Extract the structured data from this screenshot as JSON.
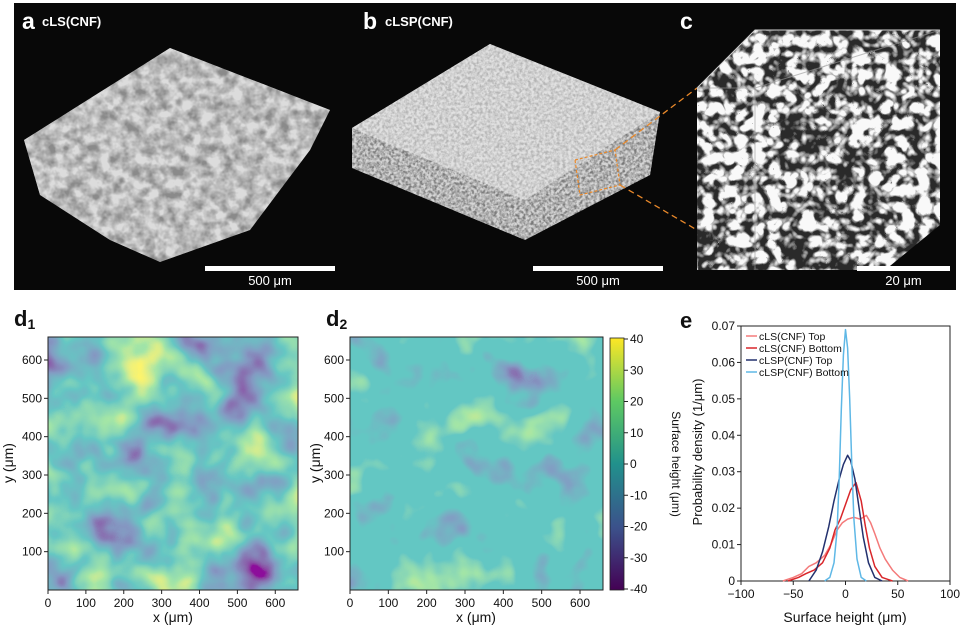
{
  "panels": {
    "a": {
      "letter": "a",
      "label": "cLS(CNF)",
      "scalebar": "500 μm"
    },
    "b": {
      "letter": "b",
      "label": "cLSP(CNF)",
      "scalebar": "500 μm"
    },
    "c": {
      "letter": "c",
      "scalebar": "20 μm"
    },
    "d1": {
      "letter": "d",
      "sub": "1"
    },
    "d2": {
      "letter": "d",
      "sub": "2"
    },
    "e": {
      "letter": "e"
    }
  },
  "heatmaps": {
    "x_label": "x (μm)",
    "y_label": "y (μm)",
    "x_ticks": [
      "0",
      "100",
      "200",
      "300",
      "400",
      "500",
      "600"
    ],
    "y_ticks": [
      "100",
      "200",
      "300",
      "400",
      "500",
      "600"
    ],
    "colorbar_label": "Surface height (μm)",
    "colorbar_ticks": [
      "40",
      "30",
      "20",
      "10",
      "0",
      "-10",
      "-20",
      "-30",
      "-40"
    ]
  },
  "chart_data": {
    "type": "line",
    "xlabel": "Surface height (μm)",
    "ylabel": "Probability density (1/μm)",
    "xlim": [
      -100,
      100
    ],
    "ylim": [
      0,
      0.07
    ],
    "x_ticks": [
      "−100",
      "−50",
      "0",
      "50",
      "100"
    ],
    "y_ticks": [
      "0",
      "0.01",
      "0.02",
      "0.03",
      "0.04",
      "0.05",
      "0.06",
      "0.07"
    ],
    "legend_position": "top-left",
    "series": [
      {
        "name": "cLS(CNF) Top",
        "color": "#f47a7a",
        "points": [
          [
            -60,
            0
          ],
          [
            -50,
            0.001
          ],
          [
            -42,
            0.002
          ],
          [
            -35,
            0.004
          ],
          [
            -28,
            0.005
          ],
          [
            -20,
            0.007
          ],
          [
            -14,
            0.01
          ],
          [
            -8,
            0.014
          ],
          [
            -3,
            0.016
          ],
          [
            2,
            0.017
          ],
          [
            8,
            0.0175
          ],
          [
            14,
            0.017
          ],
          [
            20,
            0.018
          ],
          [
            24,
            0.016
          ],
          [
            28,
            0.013
          ],
          [
            33,
            0.009
          ],
          [
            38,
            0.006
          ],
          [
            45,
            0.003
          ],
          [
            52,
            0.001
          ],
          [
            60,
            0
          ]
        ]
      },
      {
        "name": "cLS(CNF) Bottom",
        "color": "#d9262a",
        "points": [
          [
            -55,
            0
          ],
          [
            -45,
            0.001
          ],
          [
            -38,
            0.002
          ],
          [
            -30,
            0.003
          ],
          [
            -22,
            0.005
          ],
          [
            -15,
            0.009
          ],
          [
            -10,
            0.014
          ],
          [
            -5,
            0.017
          ],
          [
            0,
            0.021
          ],
          [
            5,
            0.025
          ],
          [
            10,
            0.027
          ],
          [
            15,
            0.022
          ],
          [
            19,
            0.015
          ],
          [
            23,
            0.009
          ],
          [
            28,
            0.004
          ],
          [
            35,
            0.001
          ],
          [
            45,
            0
          ]
        ]
      },
      {
        "name": "cLSP(CNF) Top",
        "color": "#23316e",
        "points": [
          [
            -35,
            0
          ],
          [
            -28,
            0.003
          ],
          [
            -22,
            0.008
          ],
          [
            -16,
            0.015
          ],
          [
            -11,
            0.022
          ],
          [
            -6,
            0.028
          ],
          [
            -2,
            0.032
          ],
          [
            2,
            0.0345
          ],
          [
            5,
            0.033
          ],
          [
            9,
            0.028
          ],
          [
            13,
            0.02
          ],
          [
            17,
            0.012
          ],
          [
            22,
            0.005
          ],
          [
            28,
            0.001
          ],
          [
            35,
            0
          ]
        ]
      },
      {
        "name": "cLSP(CNF) Bottom",
        "color": "#5fb8e6",
        "points": [
          [
            -20,
            0
          ],
          [
            -15,
            0.001
          ],
          [
            -11,
            0.005
          ],
          [
            -8,
            0.014
          ],
          [
            -6,
            0.028
          ],
          [
            -4,
            0.047
          ],
          [
            -2,
            0.062
          ],
          [
            0,
            0.069
          ],
          [
            2,
            0.064
          ],
          [
            4,
            0.05
          ],
          [
            6,
            0.032
          ],
          [
            8,
            0.017
          ],
          [
            11,
            0.006
          ],
          [
            15,
            0.001
          ],
          [
            20,
            0
          ]
        ]
      }
    ]
  },
  "colors": {
    "background": "#080808",
    "viridis": [
      "#440154",
      "#3b528b",
      "#21918c",
      "#5ec962",
      "#fde725"
    ]
  }
}
